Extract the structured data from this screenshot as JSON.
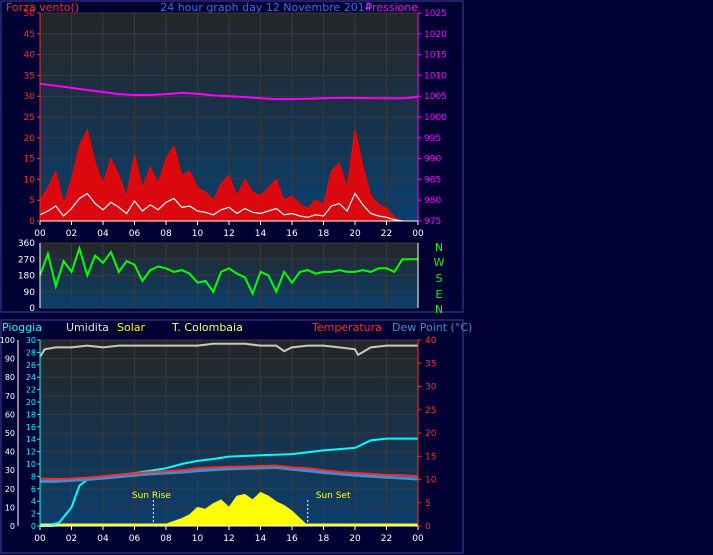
{
  "colors": {
    "background": "#000033",
    "panel_top": "#262626",
    "panel_bottom": "#0a3f6e",
    "wind": "#ff0000",
    "wind_avg": "#ffffff",
    "wind_dark": "#006600",
    "pressure": "#ff00ff",
    "direction": "#00ff00",
    "humidity": "#c8c8c8",
    "solar": "#ffff00",
    "rain": "#00ffff",
    "temperature": "#ff2a2a",
    "dewpoint": "#3a8fd0",
    "left_axis": "#ff2a2a",
    "dir_axis": "#ffffff",
    "rain_axis": "#00ffff"
  },
  "top": {
    "title_left": "Forza vento()",
    "title_center": "24 hour graph day 12 Novembre 2014",
    "title_right": "Pressione"
  },
  "middle": {
    "compass": [
      "N",
      "W",
      "S",
      "E",
      "N"
    ]
  },
  "bottom": {
    "legend": {
      "rain": "Pioggia",
      "humidity": "Umidita",
      "solar": "Solar",
      "station": "T. Colombaia",
      "temperature": "Temperatura",
      "dewpoint": "Dew Point (°C)"
    }
  },
  "chart_data": [
    {
      "type": "line",
      "id": "wind-pressure",
      "title": "24 hour graph day 12 Novembre 2014",
      "x_ticks": [
        "00",
        "02",
        "04",
        "06",
        "08",
        "10",
        "12",
        "14",
        "16",
        "18",
        "20",
        "22",
        "00"
      ],
      "xlim": [
        0,
        24
      ],
      "y_left": {
        "label": "Forza vento()",
        "ticks": [
          0,
          5,
          10,
          15,
          20,
          25,
          30,
          35,
          40,
          45,
          50
        ],
        "range": [
          0,
          50
        ]
      },
      "y_right": {
        "label": "Pressione",
        "ticks": [
          975,
          980,
          985,
          990,
          995,
          1000,
          1005,
          1010,
          1015,
          1020,
          1025
        ],
        "range": [
          975,
          1025
        ]
      },
      "series": [
        {
          "name": "Forza vento()",
          "x": [
            0,
            0.5,
            1,
            1.5,
            2,
            2.5,
            3,
            3.5,
            4,
            4.5,
            5,
            5.5,
            6,
            6.5,
            7,
            7.5,
            8,
            8.5,
            9,
            9.5,
            10,
            10.5,
            11,
            11.5,
            12,
            12.5,
            13,
            13.5,
            14,
            14.5,
            15,
            15.5,
            16,
            16.5,
            17,
            17.5,
            18,
            18.5,
            19,
            19.5,
            20,
            20.5,
            21,
            21.5,
            22,
            22.5,
            23
          ],
          "y": [
            5,
            8,
            12,
            4,
            10,
            18,
            22,
            14,
            9,
            15,
            11,
            6,
            16,
            8,
            13,
            9,
            15,
            18,
            11,
            12,
            8,
            7,
            5,
            9,
            11,
            6,
            10,
            7,
            6,
            8,
            10,
            5,
            6,
            4,
            3,
            5,
            4,
            12,
            14,
            8,
            22,
            13,
            6,
            4,
            3,
            1,
            0
          ]
        },
        {
          "name": "Pressione",
          "x": [
            0,
            1,
            2,
            3,
            4,
            5,
            6,
            7,
            8,
            9,
            10,
            11,
            12,
            13,
            14,
            15,
            16,
            17,
            18,
            19,
            20,
            21,
            22,
            23,
            24
          ],
          "y": [
            1008,
            1007.5,
            1007,
            1006.5,
            1006,
            1005.5,
            1005.3,
            1005.3,
            1005.5,
            1005.8,
            1005.6,
            1005.2,
            1005,
            1004.8,
            1004.5,
            1004.3,
            1004.3,
            1004.4,
            1004.5,
            1004.6,
            1004.6,
            1004.5,
            1004.5,
            1004.5,
            1004.8
          ]
        }
      ]
    },
    {
      "type": "line",
      "id": "wind-direction",
      "x_ticks": [
        "00",
        "02",
        "04",
        "06",
        "08",
        "10",
        "12",
        "14",
        "16",
        "18",
        "20",
        "22",
        "00"
      ],
      "xlim": [
        0,
        24
      ],
      "y_left": {
        "ticks": [
          0,
          90,
          180,
          270,
          360
        ],
        "range": [
          0,
          360
        ]
      },
      "series": [
        {
          "name": "direction",
          "x": [
            0,
            0.5,
            1,
            1.5,
            2,
            2.5,
            3,
            3.5,
            4,
            4.5,
            5,
            5.5,
            6,
            6.5,
            7,
            7.5,
            8,
            8.5,
            9,
            9.5,
            10,
            10.5,
            11,
            11.5,
            12,
            12.5,
            13,
            13.5,
            14,
            14.5,
            15,
            15.5,
            16,
            16.5,
            17,
            17.5,
            18,
            18.5,
            19,
            19.5,
            20,
            20.5,
            21,
            21.5,
            22,
            22.5,
            23,
            23.5,
            24
          ],
          "y": [
            180,
            300,
            120,
            260,
            200,
            330,
            180,
            290,
            250,
            310,
            200,
            260,
            240,
            150,
            210,
            230,
            220,
            200,
            210,
            190,
            140,
            150,
            90,
            200,
            220,
            190,
            170,
            80,
            200,
            180,
            90,
            200,
            140,
            200,
            210,
            190,
            200,
            200,
            210,
            200,
            200,
            210,
            200,
            220,
            220,
            200,
            270,
            270,
            270
          ]
        }
      ]
    },
    {
      "type": "line",
      "id": "rain-humidity-solar-temp",
      "x_ticks": [
        "00",
        "02",
        "04",
        "06",
        "08",
        "10",
        "12",
        "14",
        "16",
        "18",
        "20",
        "22",
        "00"
      ],
      "xlim": [
        0,
        24
      ],
      "y_left_humidity": {
        "label": "Umidita",
        "ticks": [
          0,
          10,
          20,
          30,
          40,
          50,
          60,
          70,
          80,
          90,
          100
        ],
        "range": [
          0,
          100
        ]
      },
      "y_left_rain": {
        "label": "Pioggia",
        "ticks": [
          0,
          2,
          4,
          6,
          8,
          10,
          12,
          14,
          16,
          18,
          20,
          22,
          24,
          26,
          28,
          30
        ],
        "range": [
          0,
          30
        ]
      },
      "y_right": {
        "label": "Temperatura",
        "ticks": [
          0,
          5,
          10,
          15,
          20,
          25,
          30,
          35,
          40
        ],
        "range": [
          0,
          40
        ]
      },
      "annotations": [
        {
          "text": "Sun Rise",
          "x": 7.2
        },
        {
          "text": "Sun Set",
          "x": 17
        }
      ],
      "series": [
        {
          "name": "Umidita",
          "x": [
            0,
            0.3,
            1,
            2,
            3,
            4,
            5,
            6,
            7,
            8,
            9,
            10,
            11,
            12,
            13,
            14,
            15,
            15.5,
            16,
            17,
            18,
            19,
            20,
            20.2,
            21,
            22,
            23,
            24
          ],
          "y": [
            91,
            95,
            96,
            96,
            97,
            96,
            97,
            97,
            97,
            97,
            97,
            97,
            98,
            98,
            98,
            97,
            97,
            94,
            96,
            97,
            97,
            96,
            95,
            92,
            96,
            97,
            97,
            97
          ]
        },
        {
          "name": "Solar",
          "x": [
            0,
            7.2,
            8,
            9,
            9.5,
            10,
            10.5,
            11,
            11.5,
            12,
            12.5,
            13,
            13.5,
            14,
            14.5,
            15,
            15.5,
            16,
            16.5,
            17,
            24
          ],
          "y": [
            0,
            0,
            1,
            4,
            6,
            10,
            9,
            12,
            14,
            10,
            16,
            17,
            14,
            18,
            16,
            13,
            11,
            8,
            4,
            0,
            0
          ]
        },
        {
          "name": "Pioggia",
          "x": [
            0,
            0.8,
            0.8,
            1.2,
            2,
            2.5,
            3,
            4,
            6,
            8,
            9,
            10,
            11,
            12,
            14,
            16,
            18,
            20,
            21,
            22,
            23,
            24
          ],
          "y": [
            0,
            0,
            0.3,
            0.5,
            3,
            6.5,
            7.5,
            8,
            8.5,
            9.3,
            10,
            10.5,
            10.8,
            11.2,
            11.4,
            11.6,
            12.2,
            12.6,
            13.8,
            14.1,
            14.1,
            14.1
          ]
        },
        {
          "name": "Temperatura",
          "x": [
            0,
            1,
            2,
            3,
            4,
            5,
            6,
            7,
            8,
            9,
            10,
            11,
            12,
            13,
            14,
            15,
            16,
            17,
            18,
            19,
            20,
            21,
            22,
            23,
            24
          ],
          "y": [
            10.2,
            10.1,
            10.2,
            10.4,
            10.7,
            11.0,
            11.3,
            11.6,
            11.8,
            12.0,
            12.4,
            12.6,
            12.7,
            12.8,
            12.9,
            13.0,
            12.6,
            12.4,
            12.0,
            11.6,
            11.4,
            11.2,
            11.0,
            10.9,
            10.7
          ]
        },
        {
          "name": "Dew Point (°C)",
          "x": [
            0,
            1,
            2,
            3,
            4,
            5,
            6,
            7,
            8,
            9,
            10,
            11,
            12,
            13,
            14,
            15,
            16,
            17,
            18,
            19,
            20,
            21,
            22,
            23,
            24
          ],
          "y": [
            9.6,
            9.6,
            9.8,
            10.0,
            10.3,
            10.6,
            10.9,
            11.2,
            11.4,
            11.6,
            11.9,
            12.1,
            12.3,
            12.4,
            12.5,
            12.6,
            12.2,
            11.9,
            11.5,
            11.2,
            10.9,
            10.7,
            10.5,
            10.3,
            10.1
          ]
        }
      ]
    }
  ]
}
